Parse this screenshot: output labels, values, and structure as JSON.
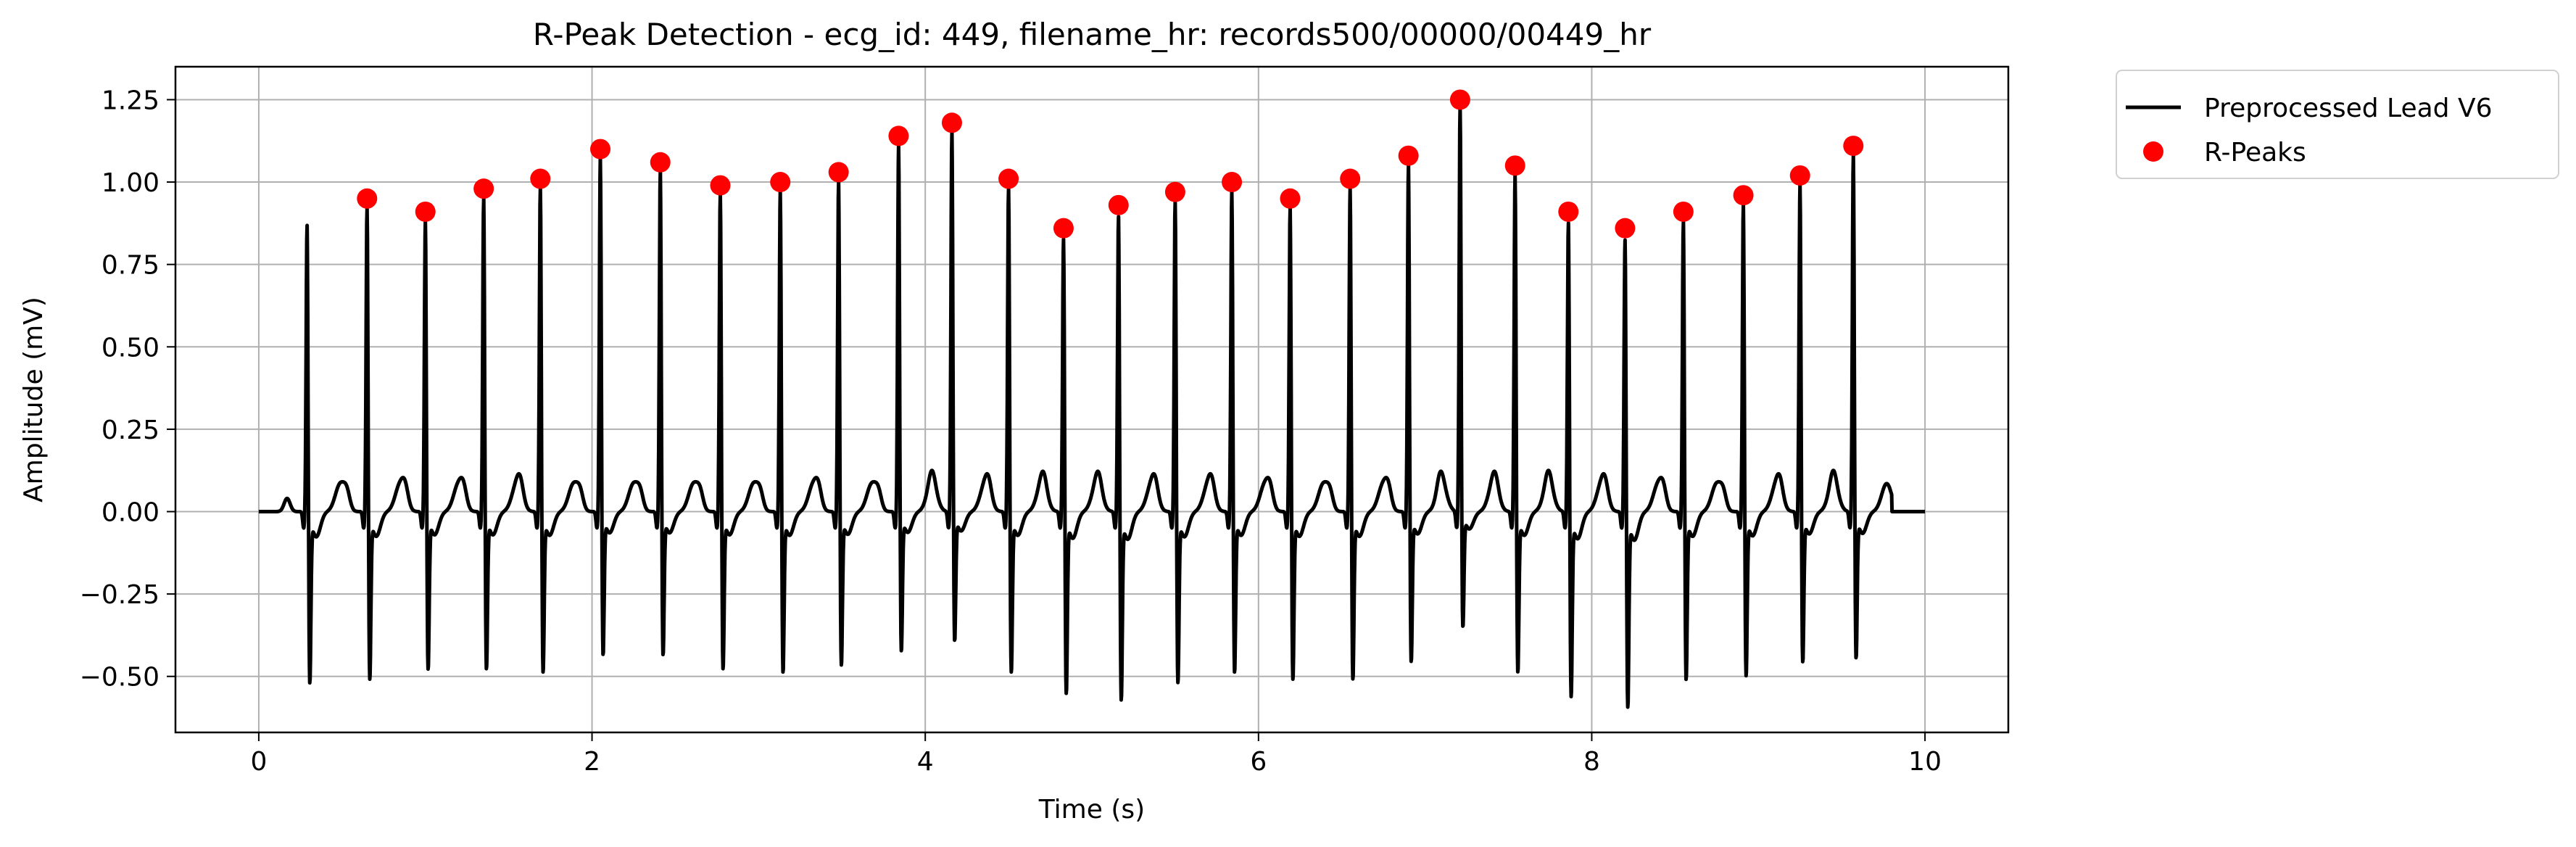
{
  "chart_data": {
    "type": "line",
    "title": "R-Peak Detection - ecg_id: 449, filename_hr: records500/00000/00449_hr",
    "xlabel": "Time (s)",
    "ylabel": "Amplitude (mV)",
    "xlim": [
      -0.5,
      10.5
    ],
    "ylim": [
      -0.67,
      1.35
    ],
    "xticks": [
      0,
      2,
      4,
      6,
      8,
      10
    ],
    "yticks": [
      -0.5,
      -0.25,
      0.0,
      0.25,
      0.5,
      0.75,
      1.0,
      1.25
    ],
    "xtick_labels": [
      "0",
      "2",
      "4",
      "6",
      "8",
      "10"
    ],
    "ytick_labels": [
      "−0.50",
      "−0.25",
      "0.00",
      "0.25",
      "0.50",
      "0.75",
      "1.00",
      "1.25"
    ],
    "grid": true,
    "legend_placement": "outside-top-right",
    "legend": [
      "Preprocessed Lead V6",
      "R-Peaks"
    ],
    "series": [
      {
        "name": "Preprocessed Lead V6",
        "color": "#000000",
        "beats": [
          {
            "t": 0.29,
            "r": 0.9,
            "s": -0.51
          },
          {
            "t": 0.65,
            "r": 0.95,
            "s": -0.5
          },
          {
            "t": 1.0,
            "r": 0.91,
            "s": -0.47
          },
          {
            "t": 1.35,
            "r": 0.98,
            "s": -0.47
          },
          {
            "t": 1.69,
            "r": 1.01,
            "s": -0.48
          },
          {
            "t": 2.05,
            "r": 1.1,
            "s": -0.43
          },
          {
            "t": 2.41,
            "r": 1.06,
            "s": -0.43
          },
          {
            "t": 2.77,
            "r": 0.99,
            "s": -0.47
          },
          {
            "t": 3.13,
            "r": 1.0,
            "s": -0.48
          },
          {
            "t": 3.48,
            "r": 1.03,
            "s": -0.46
          },
          {
            "t": 3.84,
            "r": 1.14,
            "s": -0.42
          },
          {
            "t": 4.16,
            "r": 1.18,
            "s": -0.39
          },
          {
            "t": 4.5,
            "r": 1.01,
            "s": -0.48
          },
          {
            "t": 4.83,
            "r": 0.86,
            "s": -0.54
          },
          {
            "t": 5.16,
            "r": 0.93,
            "s": -0.56
          },
          {
            "t": 5.5,
            "r": 0.97,
            "s": -0.51
          },
          {
            "t": 5.84,
            "r": 1.0,
            "s": -0.48
          },
          {
            "t": 6.19,
            "r": 0.95,
            "s": -0.5
          },
          {
            "t": 6.55,
            "r": 1.01,
            "s": -0.5
          },
          {
            "t": 6.9,
            "r": 1.08,
            "s": -0.45
          },
          {
            "t": 7.21,
            "r": 1.25,
            "s": -0.35
          },
          {
            "t": 7.54,
            "r": 1.05,
            "s": -0.48
          },
          {
            "t": 7.86,
            "r": 0.91,
            "s": -0.55
          },
          {
            "t": 8.2,
            "r": 0.86,
            "s": -0.58
          },
          {
            "t": 8.55,
            "r": 0.91,
            "s": -0.5
          },
          {
            "t": 8.91,
            "r": 0.96,
            "s": -0.49
          },
          {
            "t": 9.25,
            "r": 1.02,
            "s": -0.45
          },
          {
            "t": 9.57,
            "r": 1.11,
            "s": -0.44
          }
        ],
        "x_start": 0.0,
        "x_end": 10.0,
        "flat_after": 9.8
      },
      {
        "name": "R-Peaks",
        "color": "#ff0000",
        "x": [
          0.65,
          1.0,
          1.35,
          1.69,
          2.05,
          2.41,
          2.77,
          3.13,
          3.48,
          3.84,
          4.16,
          4.5,
          4.83,
          5.16,
          5.5,
          5.84,
          6.19,
          6.55,
          6.9,
          7.21,
          7.54,
          7.86,
          8.2,
          8.55,
          8.91,
          9.25,
          9.57
        ],
        "y": [
          0.95,
          0.91,
          0.98,
          1.01,
          1.1,
          1.06,
          0.99,
          1.0,
          1.03,
          1.14,
          1.18,
          1.01,
          0.86,
          0.93,
          0.97,
          1.0,
          0.95,
          1.01,
          1.08,
          1.25,
          1.05,
          0.91,
          0.86,
          0.91,
          0.96,
          1.02,
          1.11
        ]
      }
    ]
  }
}
